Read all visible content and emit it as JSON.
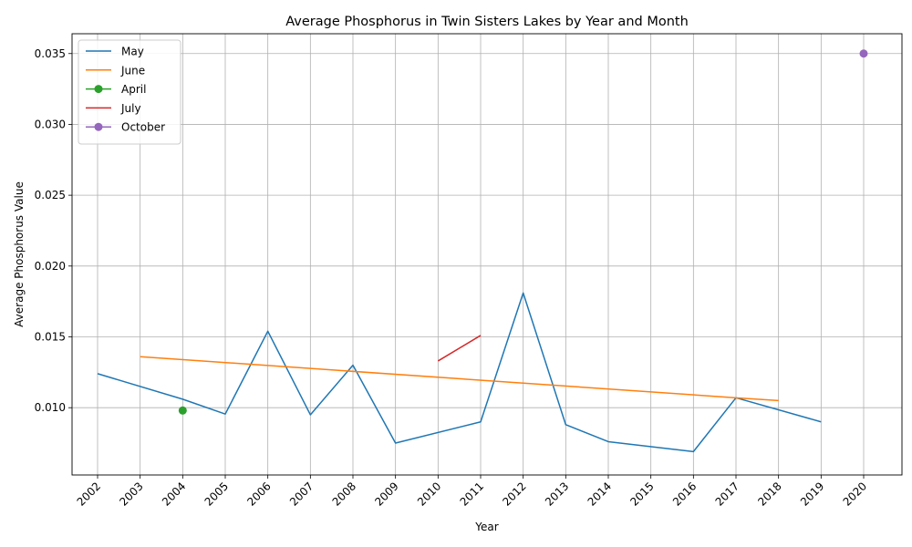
{
  "chart_data": {
    "type": "line",
    "title": "Average Phosphorus in Twin Sisters Lakes by Year and Month",
    "xlabel": "Year",
    "ylabel": "Average Phosphorus Value",
    "xlim": [
      2001.4,
      2020.9
    ],
    "ylim": [
      0.00525,
      0.0364
    ],
    "x_ticks": [
      2002,
      2003,
      2004,
      2005,
      2006,
      2007,
      2008,
      2009,
      2010,
      2011,
      2012,
      2013,
      2014,
      2015,
      2016,
      2017,
      2018,
      2019,
      2020
    ],
    "y_ticks": [
      0.01,
      0.015,
      0.02,
      0.025,
      0.03,
      0.035
    ],
    "y_tick_labels": [
      "0.010",
      "0.015",
      "0.020",
      "0.025",
      "0.030",
      "0.035"
    ],
    "grid": true,
    "legend_position": "top-left",
    "series": [
      {
        "name": "May",
        "color": "#1f77b4",
        "marker": false,
        "x": [
          2002,
          2004,
          2005,
          2006,
          2007,
          2008,
          2009,
          2011,
          2012,
          2013,
          2014,
          2016,
          2017,
          2019
        ],
        "y": [
          0.0124,
          0.0106,
          0.00955,
          0.0154,
          0.0095,
          0.013,
          0.0075,
          0.009,
          0.0181,
          0.0088,
          0.0076,
          0.0069,
          0.0107,
          0.009
        ]
      },
      {
        "name": "June",
        "color": "#ff7f0e",
        "marker": false,
        "x": [
          2003,
          2017,
          2018
        ],
        "y": [
          0.0136,
          0.0107,
          0.0105
        ]
      },
      {
        "name": "April",
        "color": "#2ca02c",
        "marker": true,
        "x": [
          2004
        ],
        "y": [
          0.0098
        ]
      },
      {
        "name": "July",
        "color": "#d62728",
        "marker": false,
        "x": [
          2010,
          2011
        ],
        "y": [
          0.0133,
          0.0151
        ]
      },
      {
        "name": "October",
        "color": "#9467bd",
        "marker": true,
        "x": [
          2020
        ],
        "y": [
          0.035
        ]
      }
    ]
  }
}
